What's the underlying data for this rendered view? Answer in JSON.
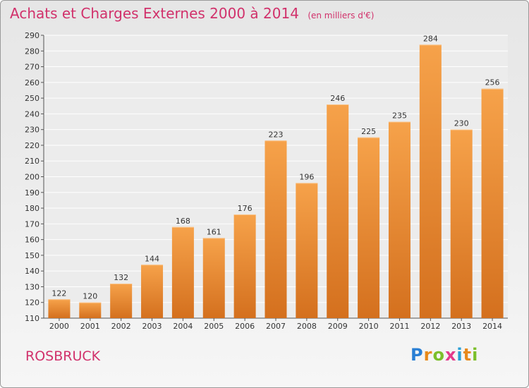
{
  "header": {
    "title": "Achats et Charges Externes 2000 à 2014",
    "unit": "(en milliers d'€)"
  },
  "footer": {
    "place": "ROSBRUCK",
    "logo_text": "Proxiti"
  },
  "colors": {
    "accent_text": "#d1316b",
    "bar_top": "#f6a24a",
    "bar_bottom": "#d4701e"
  },
  "chart_data": {
    "type": "bar",
    "categories": [
      "2000",
      "2001",
      "2002",
      "2003",
      "2004",
      "2005",
      "2006",
      "2007",
      "2008",
      "2009",
      "2010",
      "2011",
      "2012",
      "2013",
      "2014"
    ],
    "values": [
      122,
      120,
      132,
      144,
      168,
      161,
      176,
      223,
      196,
      246,
      225,
      235,
      284,
      230,
      256
    ],
    "title": "Achats et Charges Externes 2000 à 2014",
    "subtitle": "(en milliers d'€)",
    "xlabel": "",
    "ylabel": "",
    "ylim": [
      110,
      290
    ],
    "yticks": [
      110,
      120,
      130,
      140,
      150,
      160,
      170,
      180,
      190,
      200,
      210,
      220,
      230,
      240,
      250,
      260,
      270,
      280,
      290
    ],
    "grid": true,
    "data_labels": true,
    "legend": "none"
  }
}
